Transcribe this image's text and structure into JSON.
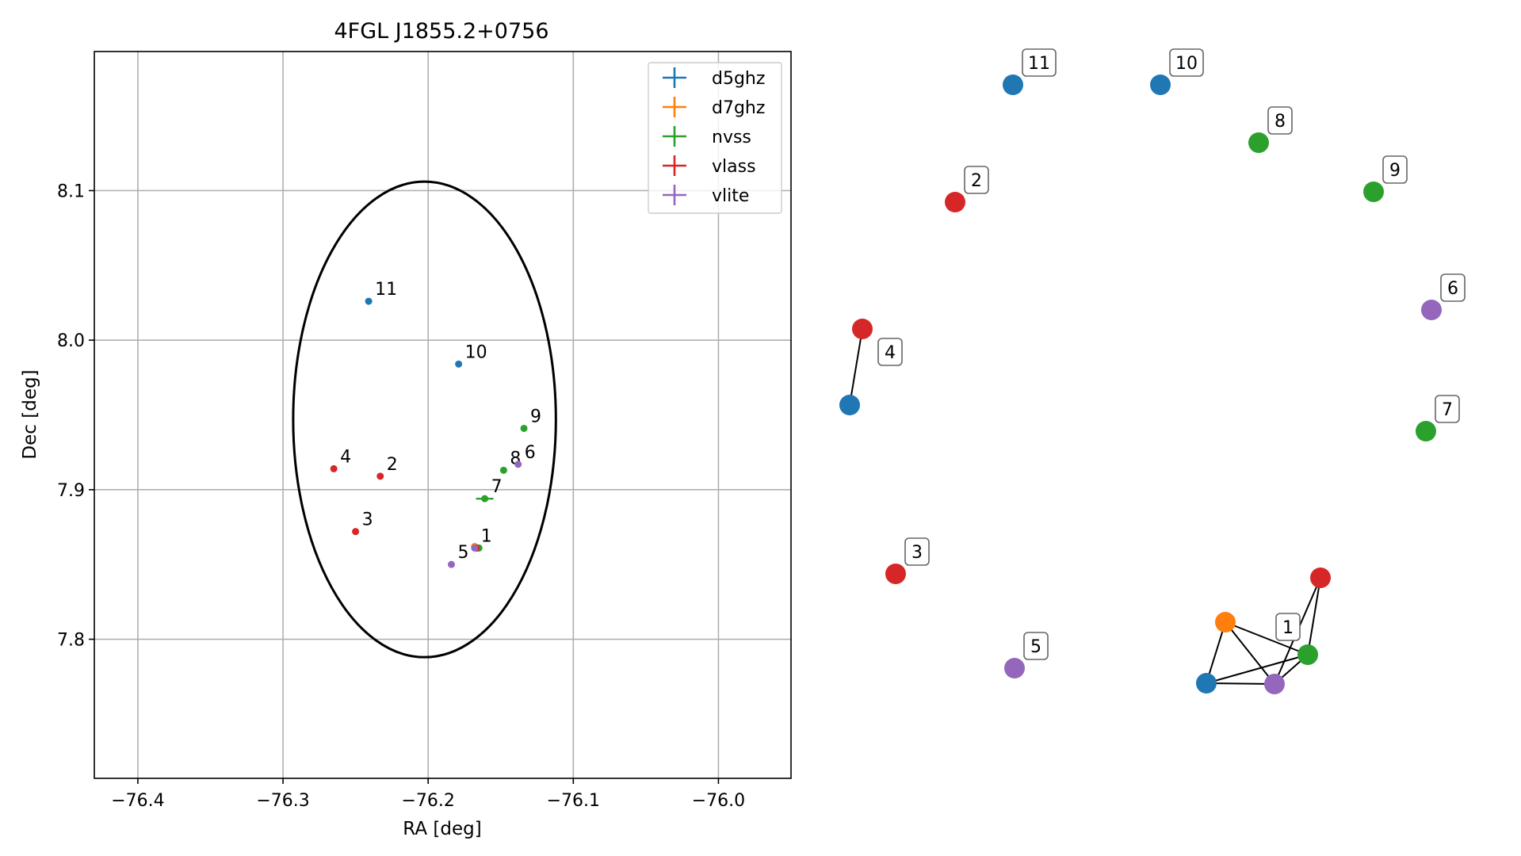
{
  "chart_data": [
    {
      "type": "scatter",
      "title": "4FGL J1855.2+0756",
      "xlabel": "RA [deg]",
      "ylabel": "Dec [deg]",
      "xlim": [
        -76.43,
        -75.95
      ],
      "ylim": [
        7.707,
        8.193
      ],
      "xticks": [
        -76.4,
        -76.3,
        -76.2,
        -76.1,
        -76.0
      ],
      "xtick_labels": [
        "−76.4",
        "−76.3",
        "−76.2",
        "−76.1",
        "−76.0"
      ],
      "yticks": [
        7.8,
        7.9,
        8.0,
        8.1
      ],
      "ytick_labels": [
        "7.8",
        "7.9",
        "8.0",
        "8.1"
      ],
      "grid": true,
      "legend_position": "top-right",
      "series": [
        {
          "name": "d5ghz",
          "color": "#1f77b4",
          "points": [
            {
              "label": "10",
              "x": -76.179,
              "y": 7.984
            },
            {
              "label": "11",
              "x": -76.241,
              "y": 8.026
            },
            {
              "label": "",
              "x": -76.166,
              "y": 7.861
            }
          ]
        },
        {
          "name": "d7ghz",
          "color": "#ff7f0e",
          "points": [
            {
              "label": "",
              "x": -76.168,
              "y": 7.862
            }
          ]
        },
        {
          "name": "nvss",
          "color": "#2ca02c",
          "points": [
            {
              "label": "7",
              "x": -76.161,
              "y": 7.894,
              "xerr": 0.006
            },
            {
              "label": "8",
              "x": -76.148,
              "y": 7.913
            },
            {
              "label": "9",
              "x": -76.134,
              "y": 7.941
            },
            {
              "label": "",
              "x": -76.165,
              "y": 7.861
            }
          ]
        },
        {
          "name": "vlass",
          "color": "#d62728",
          "points": [
            {
              "label": "2",
              "x": -76.233,
              "y": 7.909
            },
            {
              "label": "3",
              "x": -76.25,
              "y": 7.872
            },
            {
              "label": "4",
              "x": -76.265,
              "y": 7.914
            },
            {
              "label": "",
              "x": -76.167,
              "y": 7.861
            }
          ]
        },
        {
          "name": "vlite",
          "color": "#9467bd",
          "points": [
            {
              "label": "5",
              "x": -76.184,
              "y": 7.85
            },
            {
              "label": "6",
              "x": -76.138,
              "y": 7.917
            },
            {
              "label": "1",
              "x": -76.168,
              "y": 7.861
            }
          ]
        }
      ],
      "ellipse": {
        "center_x": -76.2025,
        "center_y": 7.947,
        "semi_axis_x": 0.0905,
        "semi_axis_y": 0.159,
        "color": "#000000"
      }
    },
    {
      "type": "network",
      "nodes": [
        {
          "id": "d5-11",
          "label": "11",
          "color": "#1f77b4"
        },
        {
          "id": "d5-10",
          "label": "10",
          "color": "#1f77b4"
        },
        {
          "id": "nv-8",
          "label": "8",
          "color": "#2ca02c"
        },
        {
          "id": "vl-2",
          "label": "2",
          "color": "#d62728"
        },
        {
          "id": "nv-9",
          "label": "9",
          "color": "#2ca02c"
        },
        {
          "id": "vi-6",
          "label": "6",
          "color": "#9467bd"
        },
        {
          "id": "vl-4",
          "label": "4",
          "color": "#d62728"
        },
        {
          "id": "d5-4",
          "label": "",
          "color": "#1f77b4"
        },
        {
          "id": "nv-7",
          "label": "7",
          "color": "#2ca02c"
        },
        {
          "id": "vl-3",
          "label": "3",
          "color": "#d62728"
        },
        {
          "id": "vi-5",
          "label": "5",
          "color": "#9467bd"
        },
        {
          "id": "vl-1",
          "label": "",
          "color": "#d62728"
        },
        {
          "id": "d7-1",
          "label": "",
          "color": "#ff7f0e"
        },
        {
          "id": "nv-1",
          "label": "",
          "color": "#2ca02c"
        },
        {
          "id": "d5-1",
          "label": "",
          "color": "#1f77b4"
        },
        {
          "id": "vi-1",
          "label": "1",
          "color": "#9467bd"
        }
      ],
      "edges": [
        [
          "vl-4",
          "d5-4"
        ],
        [
          "d7-1",
          "d5-1"
        ],
        [
          "d7-1",
          "vi-1"
        ],
        [
          "d7-1",
          "nv-1"
        ],
        [
          "d5-1",
          "vi-1"
        ],
        [
          "d5-1",
          "nv-1"
        ],
        [
          "vi-1",
          "nv-1"
        ],
        [
          "vl-1",
          "nv-1"
        ],
        [
          "vl-1",
          "vi-1"
        ]
      ]
    }
  ]
}
